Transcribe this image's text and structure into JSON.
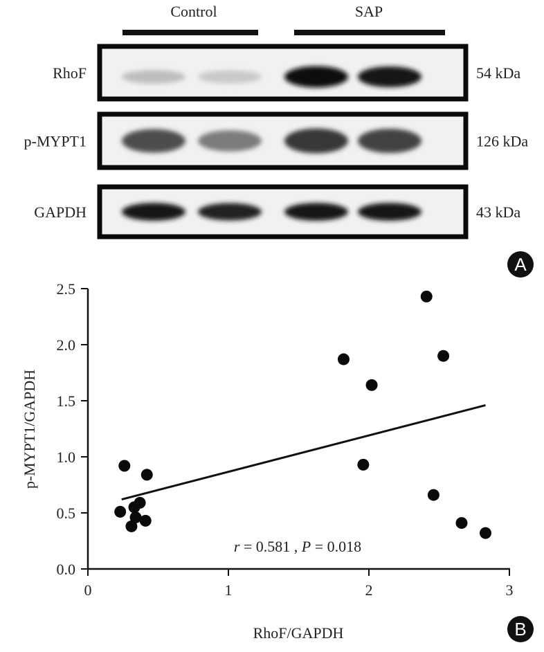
{
  "panel_a": {
    "badge": "A",
    "groups": [
      "Control",
      "SAP"
    ],
    "rows": [
      {
        "protein": "RhoF",
        "mw": "54 kDa",
        "band_intensity": [
          0.2,
          0.15,
          1.0,
          0.95
        ]
      },
      {
        "protein": "p-MYPT1",
        "mw": "126 kDa",
        "band_intensity": [
          0.7,
          0.5,
          0.8,
          0.75
        ]
      },
      {
        "protein": "GAPDH",
        "mw": "43 kDa",
        "band_intensity": [
          0.95,
          0.9,
          0.95,
          0.95
        ]
      }
    ]
  },
  "chart_data": {
    "type": "scatter",
    "badge": "B",
    "xlabel": "RhoF/GAPDH",
    "ylabel": "p-MYPT1/GAPDH",
    "xlim": [
      0,
      3
    ],
    "ylim": [
      0,
      2.5
    ],
    "xticks": [
      "0",
      "1",
      "2",
      "3"
    ],
    "yticks": [
      "0.0",
      "0.5",
      "1.0",
      "1.5",
      "2.0",
      "2.5"
    ],
    "points": [
      [
        0.26,
        0.92
      ],
      [
        0.42,
        0.84
      ],
      [
        0.23,
        0.51
      ],
      [
        0.33,
        0.55
      ],
      [
        0.37,
        0.59
      ],
      [
        0.34,
        0.46
      ],
      [
        0.31,
        0.38
      ],
      [
        0.41,
        0.43
      ],
      [
        1.82,
        1.87
      ],
      [
        2.02,
        1.64
      ],
      [
        1.96,
        0.93
      ],
      [
        2.41,
        2.43
      ],
      [
        2.53,
        1.9
      ],
      [
        2.46,
        0.66
      ],
      [
        2.66,
        0.41
      ],
      [
        2.83,
        0.32
      ]
    ],
    "fit_line": [
      [
        0.24,
        0.62
      ],
      [
        2.83,
        1.46
      ]
    ],
    "annotation": {
      "r_label": "r",
      "r_value": " = 0.581 , ",
      "p_label": "P",
      "p_value": " = 0.018"
    }
  }
}
